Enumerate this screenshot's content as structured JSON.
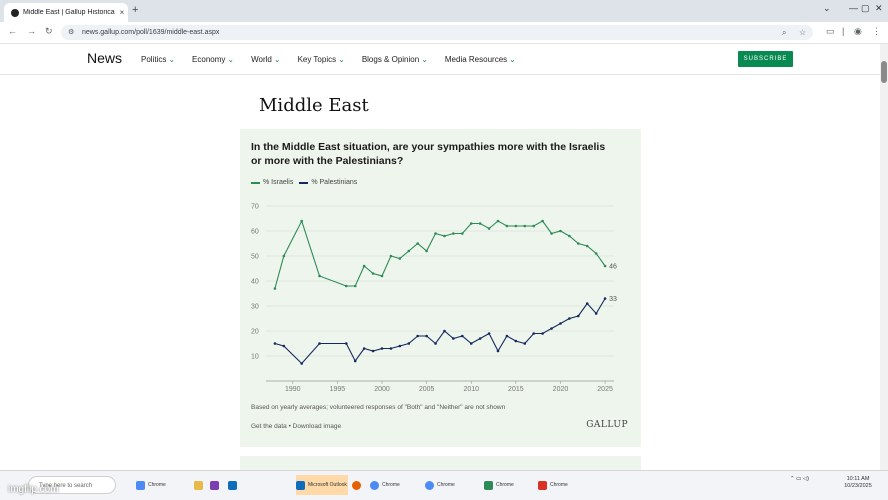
{
  "browser": {
    "tab_title": "Middle East | Gallup Historica",
    "tab_close": "×",
    "new_tab": "+",
    "url": "news.gallup.com/poll/1639/middle-east.aspx",
    "window_controls": [
      "⌄",
      "—",
      "▢",
      "✕"
    ]
  },
  "site": {
    "brand": "News",
    "nav": [
      "Politics",
      "Economy",
      "World",
      "Key Topics",
      "Blogs & Opinion",
      "Media Resources"
    ],
    "subscribe": "SUBSCRIBE"
  },
  "page": {
    "title": "Middle East"
  },
  "card": {
    "question": "In the Middle East situation, are your sympathies more with the Israelis or more with the Palestinians?",
    "footnote": "Based on yearly averages; volunteered responses of \"Both\" and \"Neither\" are not shown",
    "links": "Get the data • Download image",
    "source": "GALLUP"
  },
  "chart_data": {
    "type": "line",
    "title": "In the Middle East situation, are your sympathies more with the Israelis or more with the Palestinians?",
    "ylim": [
      0,
      72
    ],
    "yticks": [
      10,
      20,
      30,
      40,
      50,
      60,
      70
    ],
    "xlim": [
      1987,
      2026
    ],
    "xticks": [
      1990,
      1995,
      2000,
      2005,
      2010,
      2015,
      2020,
      2025
    ],
    "grid": true,
    "legend_position": "top-left",
    "colors": {
      "israelis": "#2e8b57",
      "palestinians": "#13295e",
      "grid": "#cfd8cf"
    },
    "series": [
      {
        "name": "% Israelis",
        "end_label": "46",
        "x": [
          1988,
          1989,
          1991,
          1993,
          1996,
          1997,
          1998,
          1999,
          2000,
          2001,
          2002,
          2003,
          2004,
          2005,
          2006,
          2007,
          2008,
          2009,
          2010,
          2011,
          2012,
          2013,
          2014,
          2015,
          2016,
          2017,
          2018,
          2019,
          2020,
          2021,
          2022,
          2023,
          2024,
          2025
        ],
        "values": [
          37,
          50,
          64,
          42,
          38,
          38,
          46,
          43,
          42,
          50,
          49,
          52,
          55,
          52,
          59,
          58,
          59,
          59,
          63,
          63,
          61,
          64,
          62,
          62,
          62,
          62,
          64,
          59,
          60,
          58,
          55,
          54,
          51,
          46
        ]
      },
      {
        "name": "% Palestinians",
        "end_label": "33",
        "x": [
          1988,
          1989,
          1991,
          1993,
          1996,
          1997,
          1998,
          1999,
          2000,
          2001,
          2002,
          2003,
          2004,
          2005,
          2006,
          2007,
          2008,
          2009,
          2010,
          2011,
          2012,
          2013,
          2014,
          2015,
          2016,
          2017,
          2018,
          2019,
          2020,
          2021,
          2022,
          2023,
          2024,
          2025
        ],
        "values": [
          15,
          14,
          7,
          15,
          15,
          8,
          13,
          12,
          13,
          13,
          14,
          15,
          18,
          18,
          15,
          20,
          17,
          18,
          15,
          17,
          19,
          12,
          18,
          16,
          15,
          19,
          19,
          21,
          23,
          25,
          26,
          31,
          27,
          33
        ]
      }
    ]
  },
  "taskbar": {
    "search_placeholder": "Type here to search",
    "apps": [
      "Chrome",
      "File Explorer",
      "OneNote",
      "Outlook",
      "Microsoft Outlook",
      "Chrome",
      "Chrome",
      "Chrome",
      "Chrome",
      "Chrome"
    ],
    "clock_time": "10:11 AM",
    "clock_date": "10/23/2025"
  },
  "watermark": "imgflip.com"
}
